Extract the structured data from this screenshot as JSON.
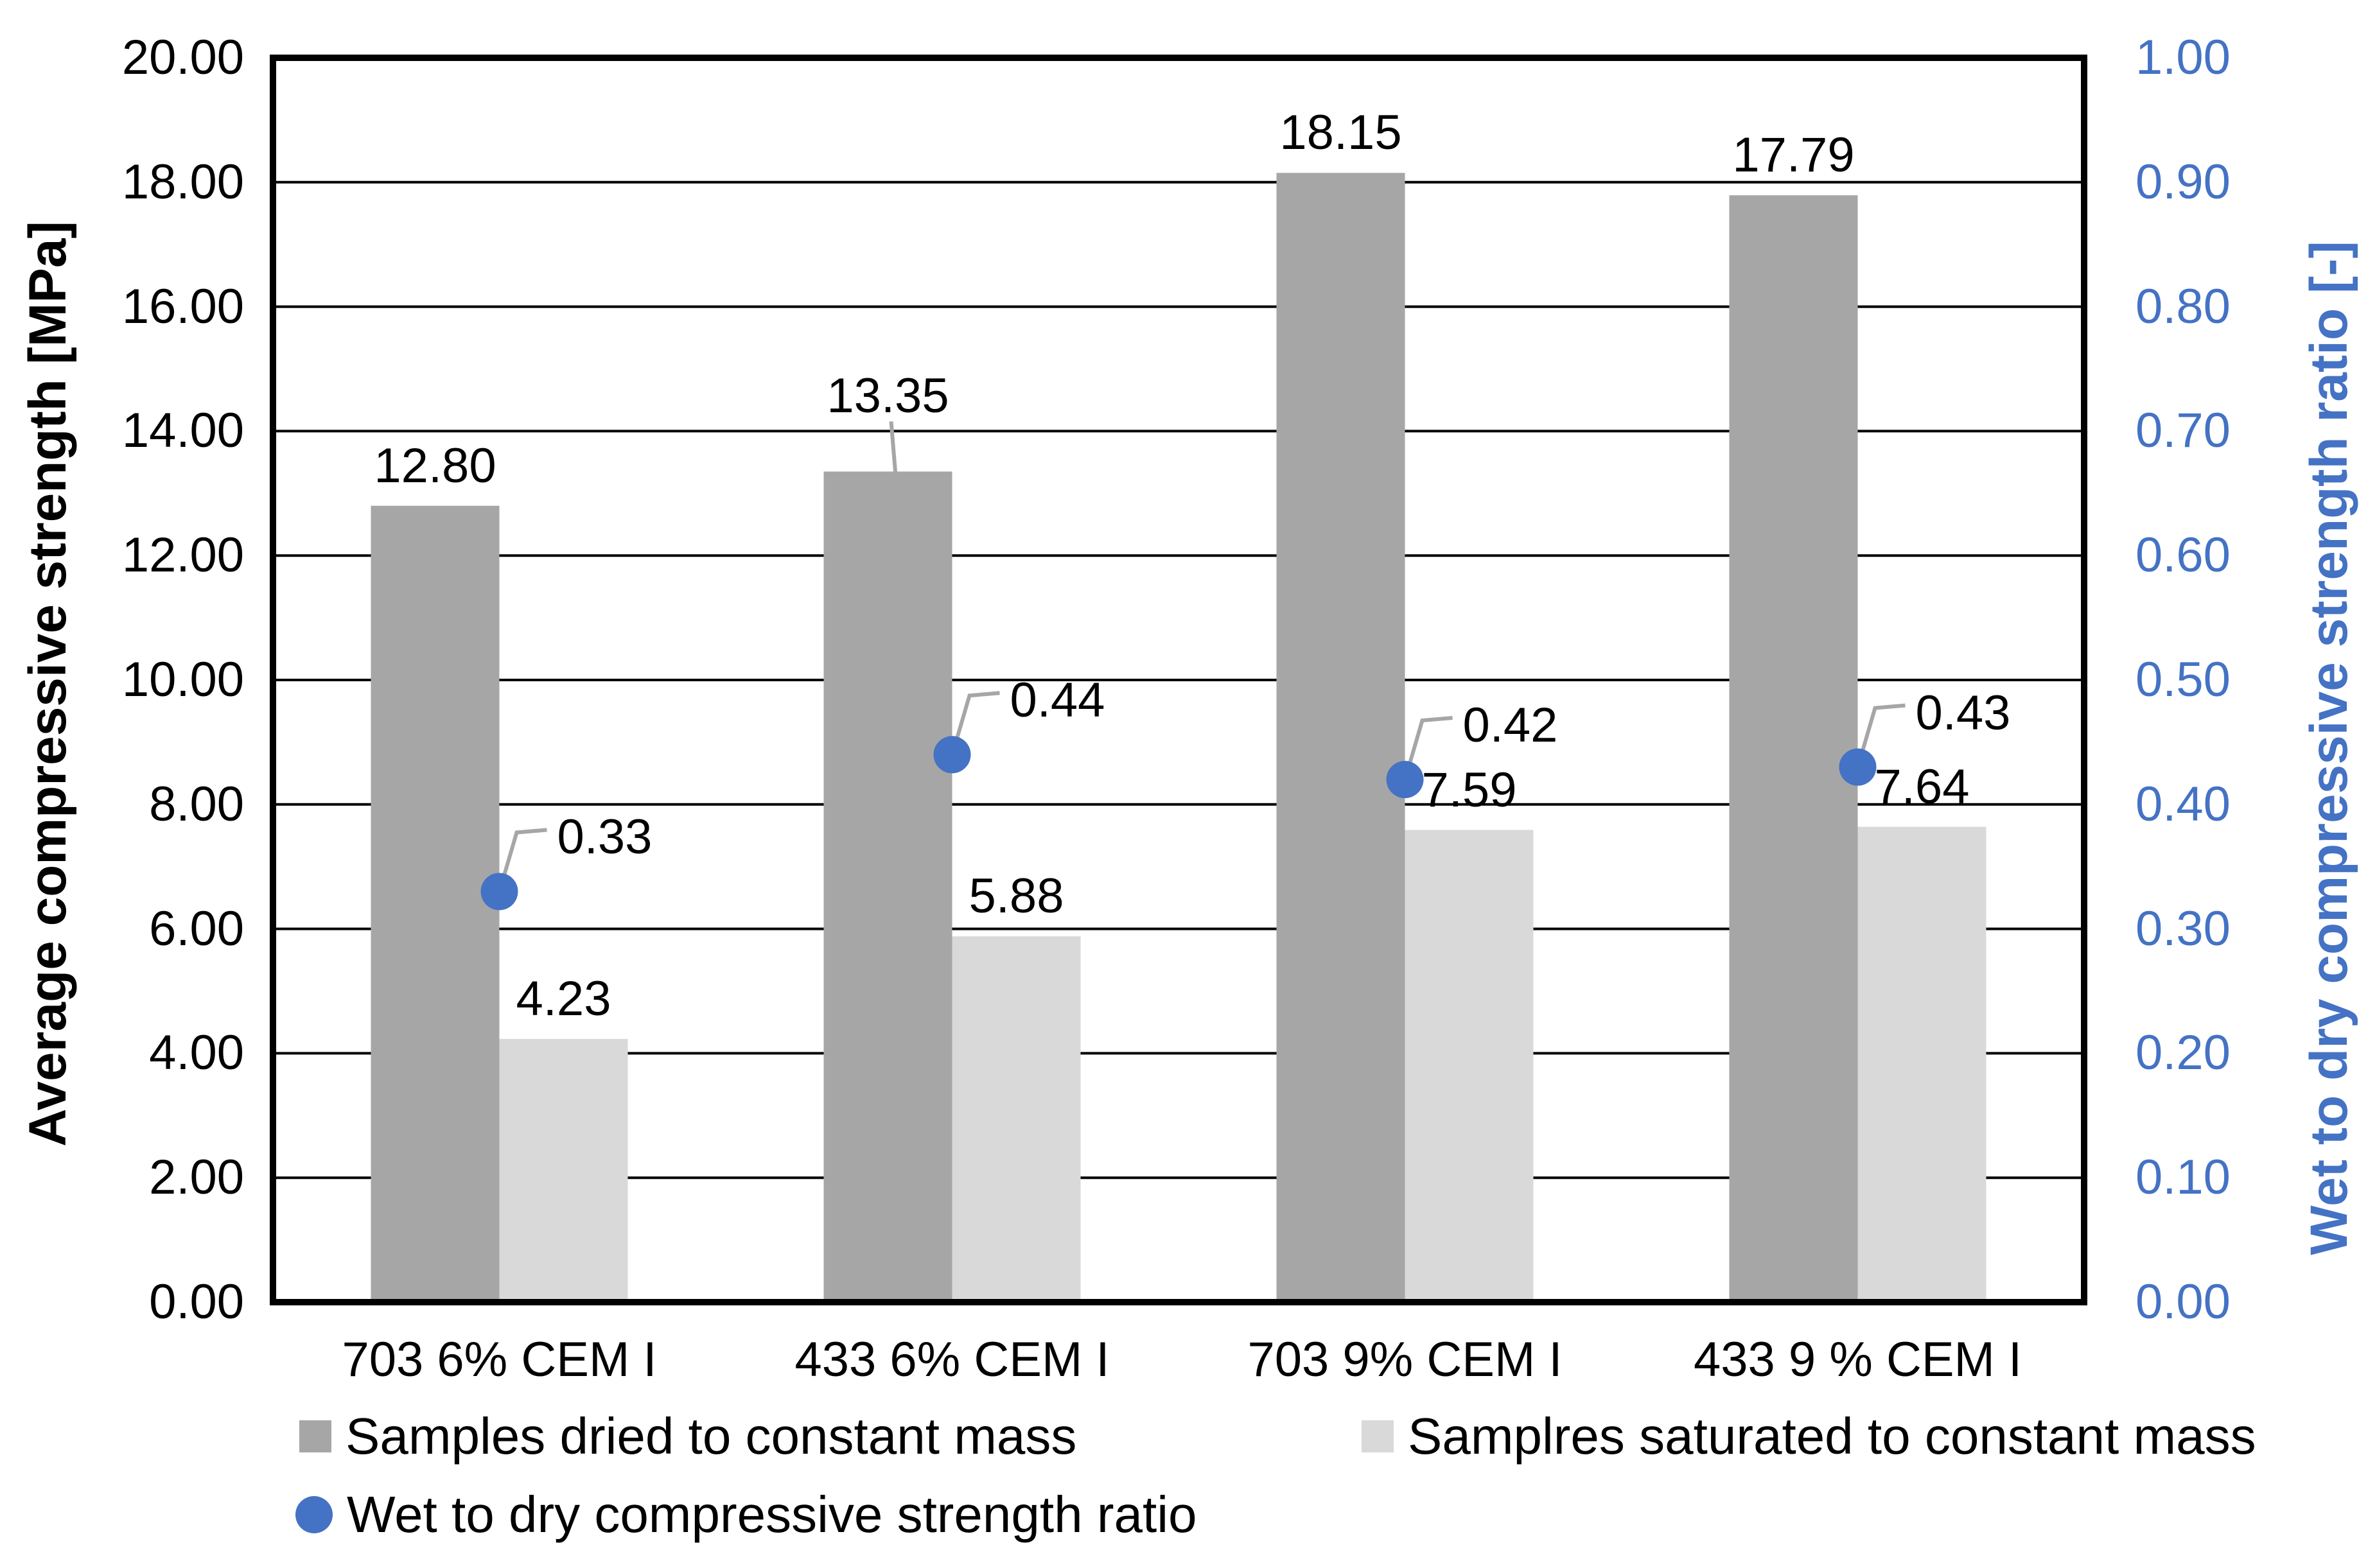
{
  "chart_data": {
    "type": "bar",
    "title": "",
    "categories": [
      "703 6% CEM I",
      "433 6% CEM I",
      "703 9% CEM I",
      "433 9 % CEM I"
    ],
    "series": [
      {
        "name": "Samples dried to constant mass",
        "type": "bar",
        "axis": "left",
        "color": "#a6a6a6",
        "values": [
          12.8,
          13.35,
          18.15,
          17.79
        ],
        "labels": [
          "12.80",
          "13.35",
          "18.15",
          "17.79"
        ]
      },
      {
        "name": "Samplres saturated to constant mass",
        "type": "bar",
        "axis": "left",
        "color": "#d9d9d9",
        "values": [
          4.23,
          5.88,
          7.59,
          7.64
        ],
        "labels": [
          "4.23",
          "5.88",
          "7.59",
          "7.64"
        ]
      },
      {
        "name": "Wet to dry compressive strength ratio",
        "type": "scatter",
        "axis": "right",
        "color": "#4472c4",
        "values": [
          0.33,
          0.44,
          0.42,
          0.43
        ],
        "labels": [
          "0.33",
          "0.44",
          "0.42",
          "0.43"
        ]
      }
    ],
    "y_left": {
      "label": "Average compressive strength [MPa]",
      "min": 0,
      "max": 20,
      "step": 2,
      "tick_format_decimals": 2,
      "color": "#000000"
    },
    "y_right": {
      "label": "Wet to dry compressive strength ratio [-]",
      "min": 0,
      "max": 1,
      "step": 0.1,
      "tick_format_decimals": 2,
      "color": "#4472c4"
    },
    "grid": true,
    "gridline_color": "#000000",
    "border_color": "#000000",
    "leader_line_color": "#a6a6a6",
    "legend_position": "bottom"
  }
}
